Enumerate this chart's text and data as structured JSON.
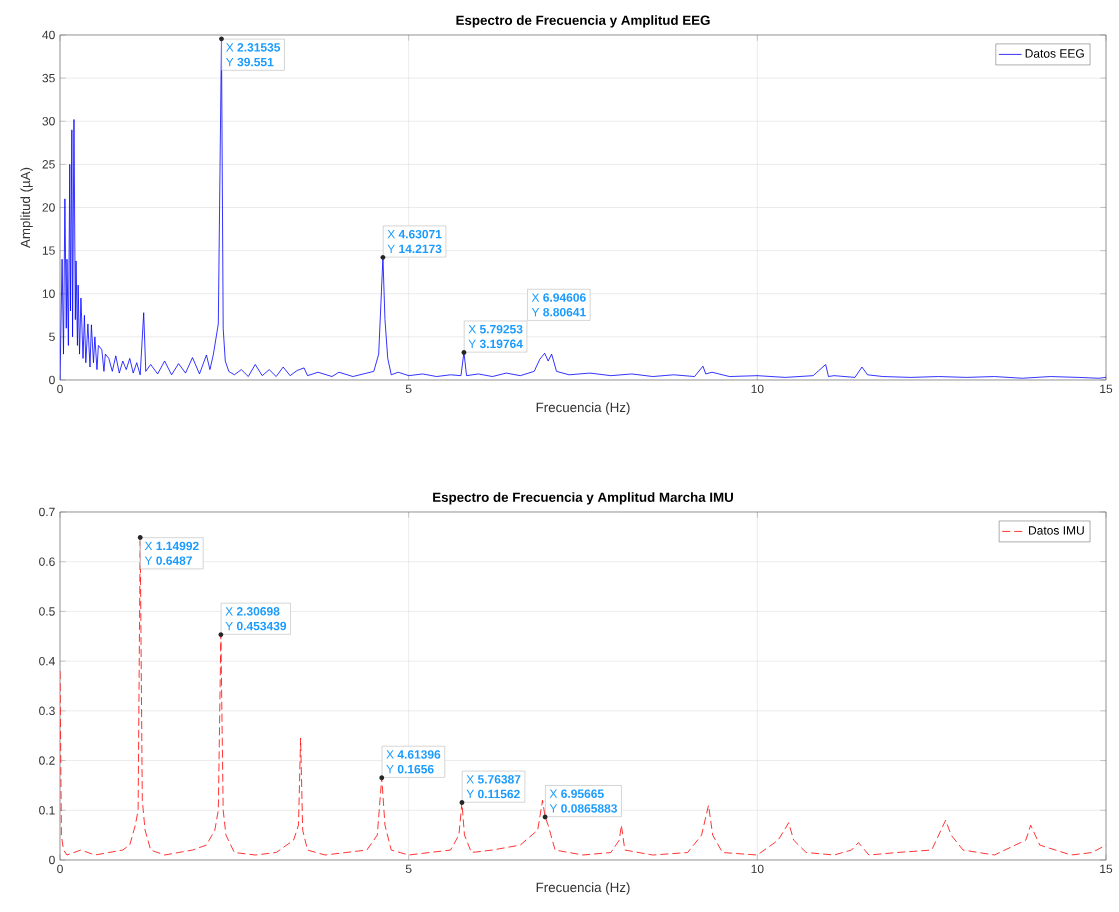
{
  "chart_data": [
    {
      "type": "line",
      "title": "Espectro de Frecuencia y Amplitud EEG",
      "xlabel": "Frecuencia (Hz)",
      "ylabel": "Amplitud (µA)",
      "xlim": [
        0,
        15
      ],
      "xticks": [
        0,
        5,
        10,
        15
      ],
      "ylim": [
        0,
        40
      ],
      "yticks": [
        0,
        5,
        10,
        15,
        20,
        25,
        30,
        35,
        40
      ],
      "grid": true,
      "legend": "top right",
      "series": [
        {
          "name": "Datos EEG",
          "color": "#0000ff",
          "x": [
            0,
            0.03,
            0.05,
            0.07,
            0.09,
            0.1,
            0.12,
            0.14,
            0.15,
            0.17,
            0.18,
            0.2,
            0.22,
            0.23,
            0.25,
            0.26,
            0.28,
            0.3,
            0.33,
            0.35,
            0.37,
            0.4,
            0.43,
            0.45,
            0.48,
            0.5,
            0.53,
            0.55,
            0.6,
            0.63,
            0.65,
            0.7,
            0.75,
            0.8,
            0.85,
            0.9,
            0.95,
            1.0,
            1.05,
            1.1,
            1.15,
            1.2,
            1.23,
            1.3,
            1.4,
            1.5,
            1.6,
            1.7,
            1.8,
            1.9,
            2.0,
            2.1,
            2.15,
            2.2,
            2.27,
            2.31535,
            2.34,
            2.37,
            2.42,
            2.5,
            2.6,
            2.7,
            2.8,
            2.9,
            3.0,
            3.1,
            3.2,
            3.3,
            3.4,
            3.5,
            3.55,
            3.7,
            3.9,
            4.0,
            4.2,
            4.4,
            4.5,
            4.57,
            4.63071,
            4.66,
            4.7,
            4.75,
            4.85,
            5.0,
            5.2,
            5.4,
            5.6,
            5.75,
            5.79253,
            5.83,
            6.0,
            6.2,
            6.4,
            6.6,
            6.8,
            6.88,
            6.95,
            7.0,
            7.05,
            7.12,
            7.3,
            7.6,
            7.9,
            8.2,
            8.5,
            8.8,
            9.1,
            9.22,
            9.26,
            9.35,
            9.6,
            10.0,
            10.4,
            10.8,
            10.98,
            11.02,
            11.1,
            11.4,
            11.5,
            11.58,
            11.8,
            12.2,
            12.6,
            13.0,
            13.4,
            13.8,
            14.2,
            14.6,
            14.9,
            15
          ],
          "values": [
            0,
            14,
            3,
            21,
            6,
            14,
            4,
            25,
            8,
            29,
            5,
            30.2,
            7,
            13.8,
            4,
            11,
            3,
            9.5,
            2.5,
            7.5,
            2,
            6.5,
            1.5,
            6.4,
            2,
            5,
            1.2,
            4,
            3.5,
            1,
            3,
            2.5,
            1,
            2.8,
            0.8,
            2.2,
            1.2,
            2.5,
            0.8,
            2,
            0.6,
            7.8,
            1,
            1.8,
            0.7,
            2.2,
            0.6,
            1.9,
            0.8,
            2.6,
            0.7,
            2.9,
            1.2,
            3,
            6.5,
            39.551,
            6,
            2.2,
            1,
            0.6,
            1.2,
            0.4,
            1.8,
            0.5,
            1.2,
            0.4,
            1.5,
            0.5,
            1.1,
            1.4,
            0.5,
            0.9,
            0.4,
            0.9,
            0.4,
            0.8,
            1,
            3,
            14.2173,
            7,
            2.5,
            0.6,
            0.9,
            0.5,
            0.7,
            0.4,
            0.6,
            0.5,
            3.19764,
            0.5,
            0.7,
            0.4,
            0.8,
            0.5,
            1,
            2.4,
            3.1,
            2.2,
            3,
            1,
            0.6,
            0.8,
            0.5,
            0.7,
            0.4,
            0.6,
            0.4,
            1.6,
            0.7,
            0.9,
            0.4,
            0.5,
            0.3,
            0.5,
            1.8,
            0.4,
            0.5,
            0.3,
            1.5,
            0.6,
            0.4,
            0.3,
            0.4,
            0.3,
            0.4,
            0.2,
            0.4,
            0.3,
            0.2,
            0.3
          ]
        }
      ],
      "annotations": [
        {
          "text": "X **2.31535**",
          "x": 2.31535,
          "y": 39.551
        },
        "Y **39.551**",
        {
          "text": "X **4.63071**",
          "x": 4.63071,
          "y": 14.2173
        },
        "Y **14.2173**",
        {
          "text": "X **5.79253**",
          "x": 5.79253,
          "y": 3.19764
        },
        "Y **3.19764**",
        "X **6.94606**",
        "Y **8.80641**"
      ]
    },
    {
      "type": "line",
      "title": "Espectro de Frecuencia y Amplitud Marcha IMU",
      "xlabel": "Frecuencia (Hz)",
      "xlim": [
        0,
        15
      ],
      "xticks": [
        0,
        5,
        10,
        15
      ],
      "ylim": [
        0,
        0.7
      ],
      "yticks": [
        0,
        0.1,
        0.2,
        0.3,
        0.4,
        0.5,
        0.6,
        0.7
      ],
      "grid": true,
      "legend": "top right",
      "line_style": "dashed",
      "series": [
        {
          "name": "Datos IMU",
          "color": "#ff0000",
          "x": [
            0,
            0.02,
            0.05,
            0.1,
            0.3,
            0.5,
            0.7,
            0.9,
            1.0,
            1.08,
            1.12,
            1.14992,
            1.18,
            1.22,
            1.3,
            1.5,
            1.7,
            1.9,
            2.1,
            2.22,
            2.27,
            2.30698,
            2.34,
            2.38,
            2.5,
            2.8,
            3.1,
            3.35,
            3.42,
            3.45,
            3.48,
            3.55,
            3.8,
            4.1,
            4.4,
            4.55,
            4.61396,
            4.66,
            4.75,
            5.0,
            5.3,
            5.6,
            5.72,
            5.76387,
            5.8,
            5.9,
            6.2,
            6.6,
            6.85,
            6.92,
            6.95665,
            7.0,
            7.1,
            7.5,
            7.9,
            8.02,
            8.05,
            8.1,
            8.5,
            9.0,
            9.2,
            9.3,
            9.36,
            9.5,
            10.0,
            10.3,
            10.45,
            10.52,
            10.7,
            11.1,
            11.35,
            11.45,
            11.6,
            12.0,
            12.5,
            12.7,
            12.78,
            12.95,
            13.4,
            13.85,
            13.92,
            14.05,
            14.5,
            14.8,
            15
          ],
          "values": [
            0.38,
            0.05,
            0.02,
            0.01,
            0.02,
            0.01,
            0.015,
            0.02,
            0.03,
            0.07,
            0.1,
            0.648784,
            0.12,
            0.06,
            0.02,
            0.01,
            0.015,
            0.02,
            0.03,
            0.06,
            0.1,
            0.453439,
            0.1,
            0.05,
            0.015,
            0.01,
            0.015,
            0.04,
            0.07,
            0.245,
            0.06,
            0.02,
            0.01,
            0.015,
            0.02,
            0.05,
            0.1656,
            0.07,
            0.02,
            0.01,
            0.015,
            0.02,
            0.05,
            0.11562,
            0.05,
            0.015,
            0.02,
            0.03,
            0.06,
            0.12,
            0.0865883,
            0.07,
            0.02,
            0.01,
            0.015,
            0.04,
            0.07,
            0.02,
            0.01,
            0.015,
            0.05,
            0.11,
            0.05,
            0.015,
            0.01,
            0.04,
            0.075,
            0.04,
            0.015,
            0.01,
            0.02,
            0.035,
            0.01,
            0.015,
            0.02,
            0.08,
            0.05,
            0.02,
            0.01,
            0.04,
            0.07,
            0.03,
            0.01,
            0.015,
            0.03
          ]
        }
      ],
      "annotations": [
        {
          "text": "X **1.14992**",
          "x": 1.14992,
          "y": 0.648784
        },
        "Y **0.6487**",
        {
          "text": "X **2.30698**",
          "x": 2.30698,
          "y": 0.453439
        },
        "Y **0.453439**",
        {
          "text": "X **4.61396**",
          "x": 4.61396,
          "y": 0.1656
        },
        "Y **0.1656**",
        {
          "text": "X **5.76387**",
          "x": 5.76387,
          "y": 0.11562
        },
        "Y **0.11562**",
        {
          "text": "X **6.95665**",
          "x": 6.95665,
          "y": 0.0865883
        },
        "Y **0.0865883**"
      ]
    }
  ]
}
